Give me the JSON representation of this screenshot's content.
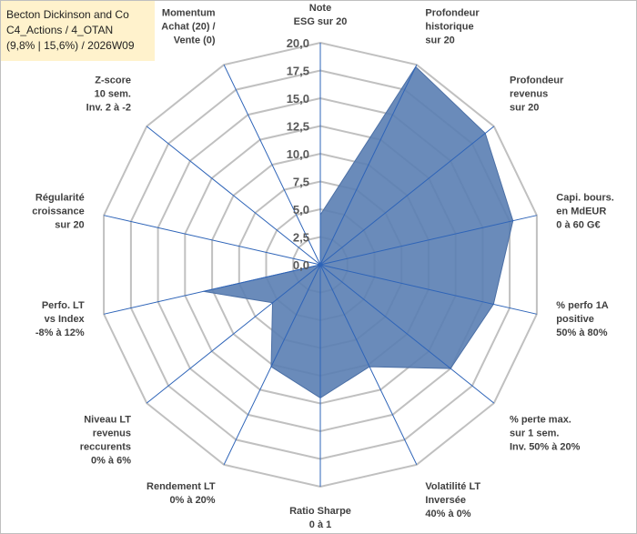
{
  "chart_data": {
    "type": "radar",
    "title": [
      "Becton Dickinson and Co",
      "C4_Actions / 4_OTAN",
      "(9,8% | 15,6%) / 2026W09"
    ],
    "r_range": [
      0,
      20
    ],
    "r_ticks": [
      "0,0",
      "2,5",
      "5,0",
      "7,5",
      "10,0",
      "12,5",
      "15,0",
      "17,5",
      "20,0"
    ],
    "axes": [
      [
        "Note",
        "ESG sur 20"
      ],
      [
        "Profondeur",
        "historique",
        "sur 20"
      ],
      [
        "Profondeur",
        "revenus",
        "sur 20"
      ],
      [
        "Capi. bours.",
        "en MdEUR",
        "0 à 60 G€"
      ],
      [
        "% perfo 1A",
        "positive",
        "50% à 80%"
      ],
      [
        "% perte max.",
        "sur 1 sem.",
        "Inv. 50% à 20%"
      ],
      [
        "Volatilité LT",
        "Inversée",
        "40% à 0%"
      ],
      [
        "Ratio Sharpe",
        "0 à 1"
      ],
      [
        "Rendement LT",
        "0% à 20%"
      ],
      [
        "Niveau LT",
        "revenus",
        "reccurents",
        "0% à 6%"
      ],
      [
        "Perfo. LT",
        "vs Index",
        "-8% à 12%"
      ],
      [
        "Régularité",
        "croissance",
        "sur 20"
      ],
      [
        "Z-score",
        "10 sem.",
        "Inv. 2 à -2"
      ],
      [
        "Momentum",
        "Achat (20) /",
        "Vente (0)"
      ]
    ],
    "series": [
      {
        "name": "Becton Dickinson and Co",
        "values": [
          4.5,
          19.8,
          19.0,
          17.8,
          16.0,
          15.0,
          10.2,
          12.0,
          10.2,
          5.5,
          10.8,
          0,
          0,
          0
        ]
      }
    ],
    "colors": {
      "fill": "#5a7eb3",
      "stroke": "#4b6fa5",
      "grid": "#c0c0c0",
      "spoke": "#2e64b8"
    }
  }
}
